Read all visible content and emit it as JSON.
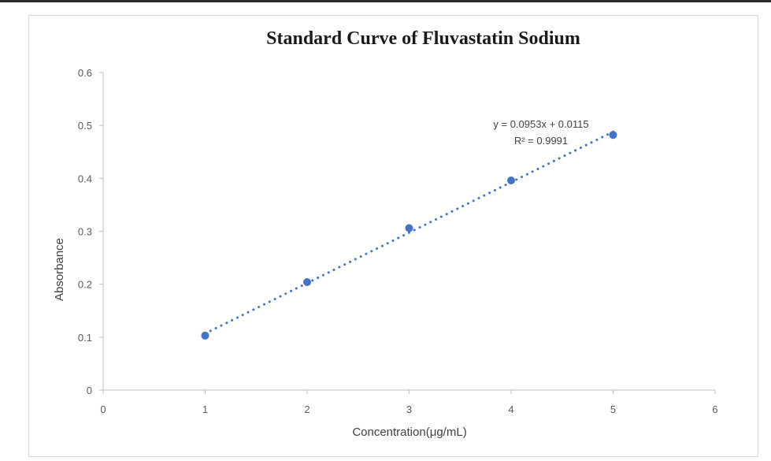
{
  "chart_data": {
    "type": "scatter",
    "title": "Standard Curve of Fluvastatin Sodium",
    "xlabel": "Concentration(μg/mL)",
    "ylabel": "Absorbance",
    "xlim": [
      0,
      6
    ],
    "ylim": [
      0,
      0.6
    ],
    "x_ticks": [
      "0",
      "1",
      "2",
      "3",
      "4",
      "5",
      "6"
    ],
    "y_ticks": [
      "0",
      "0.1",
      "0.2",
      "0.3",
      "0.4",
      "0.5",
      "0.6"
    ],
    "grid": false,
    "series": [
      {
        "x": [
          1,
          2,
          3,
          4,
          5
        ],
        "y": [
          0.103,
          0.204,
          0.306,
          0.396,
          0.482
        ],
        "color": "#4472c4"
      }
    ],
    "trendline": {
      "type": "linear",
      "slope": 0.0953,
      "intercept": 0.0115,
      "style": "dotted",
      "color": "#4472c4",
      "equation_label": "y = 0.0953x + 0.0115",
      "r2_label": "R² = 0.9991"
    }
  }
}
